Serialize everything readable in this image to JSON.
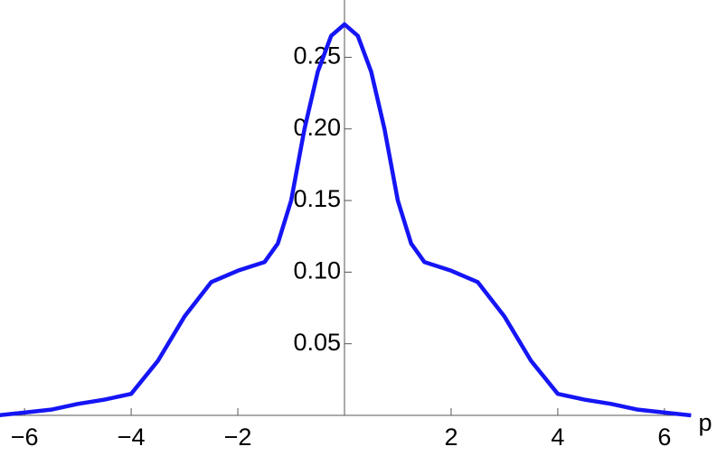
{
  "chart_data": {
    "type": "line",
    "x_label": "p",
    "x": [
      -6.5,
      -6,
      -5.5,
      -5,
      -4.5,
      -4,
      -3.5,
      -3,
      -2.5,
      -2,
      -1.5,
      -1.25,
      -1,
      -0.75,
      -0.5,
      -0.25,
      0,
      0.25,
      0.5,
      0.75,
      1,
      1.25,
      1.5,
      2,
      2.5,
      3,
      3.5,
      4,
      4.5,
      5,
      5.5,
      6,
      6.5
    ],
    "series": [
      {
        "color": "#1515f5",
        "values": [
          0.0,
          0.002,
          0.004,
          0.008,
          0.011,
          0.015,
          0.038,
          0.069,
          0.093,
          0.101,
          0.107,
          0.12,
          0.15,
          0.2,
          0.24,
          0.265,
          0.273,
          0.265,
          0.24,
          0.2,
          0.15,
          0.12,
          0.107,
          0.101,
          0.093,
          0.069,
          0.038,
          0.015,
          0.011,
          0.008,
          0.004,
          0.002,
          0.0
        ]
      }
    ],
    "xlim": [
      -6.46,
      6.46
    ],
    "ylim": [
      0,
      0.29
    ],
    "xticks": [
      {
        "value": -6,
        "label": "−6"
      },
      {
        "value": -4,
        "label": "−4"
      },
      {
        "value": -2,
        "label": "−2"
      },
      2,
      4,
      6
    ],
    "yticks": [
      {
        "value": 0.05,
        "label": "0.05"
      },
      {
        "value": 0.1,
        "label": "0.10"
      },
      {
        "value": 0.15,
        "label": "0.15"
      },
      {
        "value": 0.2,
        "label": "0.20"
      },
      {
        "value": 0.25,
        "label": "0.25"
      }
    ]
  }
}
